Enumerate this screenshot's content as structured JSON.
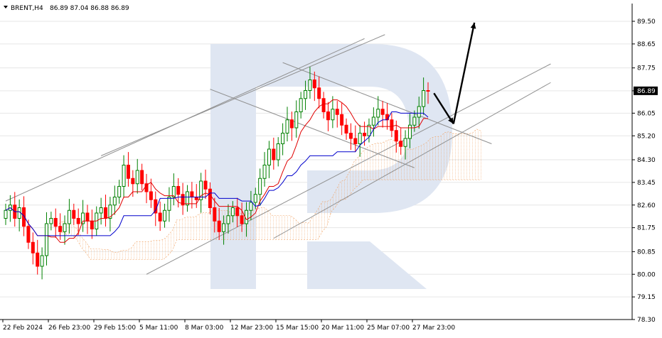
{
  "header": {
    "symbol": "BRENT,H4",
    "ohlc": "86.89 87.04 86.88 86.89",
    "menu_icon": "triangle-down-icon"
  },
  "watermark": {
    "icon": "brand-logo-watermark",
    "color": "#dfe6f2"
  },
  "colors": {
    "bull": "#008000",
    "bear": "#ff0000",
    "tenkan": "#e00000",
    "kijun": "#0000cc",
    "cloud": "#f0a060",
    "trendline": "#909090",
    "arrow": "#000000",
    "grid": "#e6e6e6"
  },
  "chart_data": {
    "type": "candlestick",
    "instrument": "BRENT",
    "timeframe": "H4",
    "current_price": 86.89,
    "ylim": [
      78.3,
      89.9
    ],
    "y_ticks": [
      "89.50",
      "88.65",
      "87.75",
      "86.89",
      "86.05",
      "85.20",
      "84.30",
      "83.45",
      "82.60",
      "81.75",
      "80.85",
      "80.00",
      "79.15",
      "78.30"
    ],
    "x_ticks": [
      "22 Feb 2024",
      "26 Feb 23:00",
      "29 Feb 15:00",
      "5 Mar 11:00",
      "8 Mar 03:00",
      "12 Mar 23:00",
      "15 Mar 15:00",
      "20 Mar 11:00",
      "25 Mar 07:00",
      "27 Mar 23:00"
    ],
    "grid": true,
    "indicators": [
      "Ichimoku Kinko Hyo (Tenkan-sen, Kijun-sen, Kumo cloud)"
    ],
    "candles_close": [
      82.4,
      82.6,
      82.1,
      82.5,
      81.8,
      81.2,
      80.8,
      80.3,
      80.7,
      81.9,
      82.1,
      81.8,
      81.6,
      81.9,
      82.4,
      82.1,
      81.9,
      82.3,
      82.0,
      81.7,
      82.3,
      82.5,
      82.1,
      82.6,
      82.9,
      83.3,
      84.1,
      83.6,
      83.4,
      83.9,
      83.4,
      83.1,
      82.8,
      82.3,
      82.0,
      82.4,
      82.9,
      83.3,
      83.0,
      82.6,
      83.1,
      82.9,
      82.8,
      83.5,
      83.2,
      82.5,
      82.0,
      81.6,
      81.9,
      82.2,
      82.5,
      82.2,
      81.9,
      82.4,
      82.7,
      83.0,
      83.6,
      84.1,
      84.7,
      84.3,
      84.9,
      85.3,
      85.8,
      85.5,
      86.1,
      86.6,
      86.9,
      87.3,
      87.0,
      86.6,
      86.1,
      85.8,
      86.2,
      86.0,
      85.6,
      85.3,
      85.1,
      84.9,
      85.3,
      85.2,
      85.6,
      85.9,
      86.2,
      86.0,
      85.8,
      85.4,
      85.0,
      84.8,
      85.1,
      85.6,
      85.9,
      86.3,
      86.9,
      86.89
    ],
    "annotations": [
      "Ascending channel trendlines",
      "Descending channel trendlines",
      "Rising support lines",
      "Arrow projection: pullback then rise toward 89.50"
    ]
  }
}
